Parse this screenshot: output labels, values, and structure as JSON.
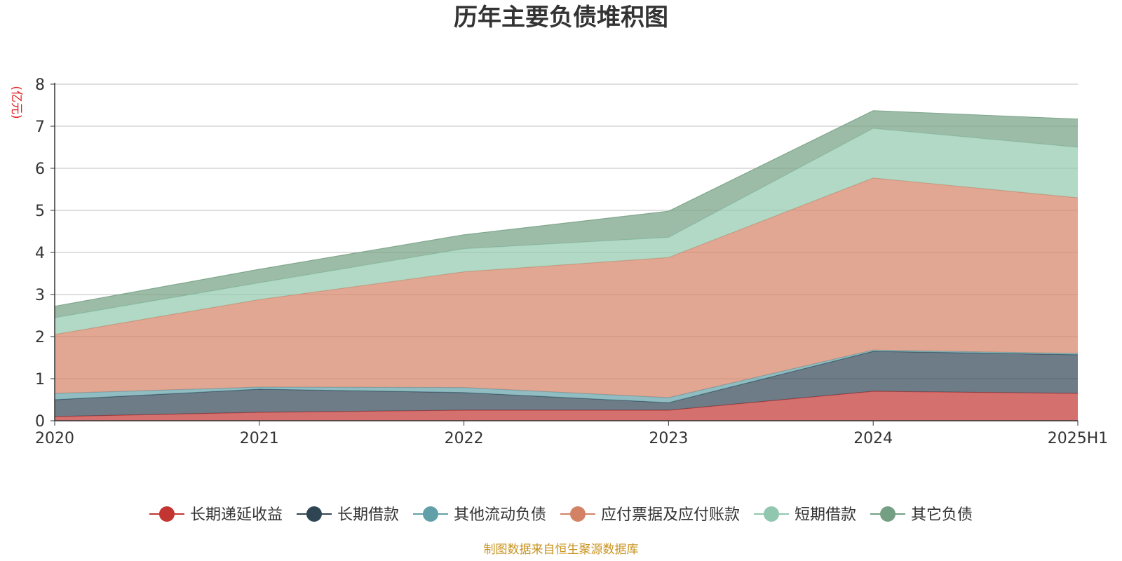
{
  "chart_data": {
    "type": "area",
    "stacked": true,
    "title": "历年主要负债堆积图",
    "unit_label": "(亿元)",
    "categories": [
      "2020",
      "2021",
      "2022",
      "2023",
      "2024",
      "2025H1"
    ],
    "ylim": [
      0,
      8
    ],
    "yticks": [
      "0",
      "1",
      "2",
      "3",
      "4",
      "5",
      "6",
      "7",
      "8"
    ],
    "grid": true,
    "legend_position": "bottom",
    "series": [
      {
        "name": "长期递延收益",
        "color": "#c23531",
        "values": [
          0.1,
          0.2,
          0.25,
          0.25,
          0.7,
          0.65
        ]
      },
      {
        "name": "长期借款",
        "color": "#2f4554",
        "values": [
          0.4,
          0.55,
          0.42,
          0.18,
          0.95,
          0.92
        ]
      },
      {
        "name": "其他流动负债",
        "color": "#61a0a8",
        "values": [
          0.15,
          0.05,
          0.12,
          0.12,
          0.03,
          0.03
        ]
      },
      {
        "name": "应付票据及应付账款",
        "color": "#d48265",
        "values": [
          1.4,
          2.08,
          2.75,
          3.33,
          4.09,
          3.7
        ]
      },
      {
        "name": "短期借款",
        "color": "#91c7ae",
        "values": [
          0.4,
          0.4,
          0.55,
          0.48,
          1.18,
          1.2
        ]
      },
      {
        "name": "其它负债",
        "color": "#749f83",
        "values": [
          0.27,
          0.32,
          0.33,
          0.62,
          0.42,
          0.67
        ]
      }
    ]
  },
  "source_note": "制图数据来自恒生聚源数据库"
}
